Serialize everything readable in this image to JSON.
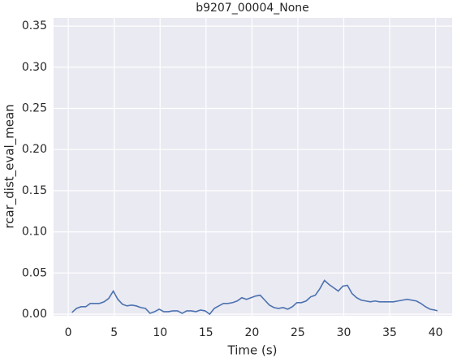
{
  "chart_data": {
    "type": "line",
    "title": "b9207_00004_None",
    "xlabel": "Time (s)",
    "ylabel": "rcar_dist_eval_mean",
    "x": [
      0.4,
      0.9,
      1.4,
      1.9,
      2.4,
      2.9,
      3.4,
      3.9,
      4.4,
      4.9,
      5.4,
      5.9,
      6.4,
      6.9,
      7.4,
      7.9,
      8.4,
      8.9,
      9.4,
      9.9,
      10.4,
      10.9,
      11.4,
      11.9,
      12.4,
      12.9,
      13.4,
      13.9,
      14.4,
      14.9,
      15.4,
      15.9,
      16.4,
      16.9,
      17.4,
      17.9,
      18.4,
      18.9,
      19.4,
      19.9,
      20.4,
      20.9,
      21.4,
      21.9,
      22.4,
      22.9,
      23.4,
      23.9,
      24.4,
      24.9,
      25.4,
      25.9,
      26.4,
      26.9,
      27.4,
      27.9,
      28.4,
      28.9,
      29.4,
      29.9,
      30.4,
      30.9,
      31.4,
      31.9,
      32.4,
      32.9,
      33.4,
      33.9,
      34.4,
      34.9,
      35.4,
      35.9,
      36.4,
      36.9,
      37.4,
      37.9,
      38.4,
      38.9,
      39.4,
      39.9,
      40.2
    ],
    "series": [
      {
        "name": "rcar_dist_eval_mean",
        "color": "#4c72b0",
        "values": [
          0.002,
          0.007,
          0.009,
          0.009,
          0.013,
          0.013,
          0.013,
          0.015,
          0.019,
          0.028,
          0.018,
          0.012,
          0.01,
          0.011,
          0.01,
          0.008,
          0.007,
          0.001,
          0.003,
          0.006,
          0.003,
          0.003,
          0.004,
          0.004,
          0.001,
          0.004,
          0.004,
          0.003,
          0.005,
          0.004,
          0.0,
          0.007,
          0.01,
          0.013,
          0.013,
          0.014,
          0.016,
          0.02,
          0.018,
          0.02,
          0.022,
          0.023,
          0.017,
          0.011,
          0.008,
          0.007,
          0.008,
          0.006,
          0.009,
          0.014,
          0.014,
          0.016,
          0.021,
          0.023,
          0.031,
          0.041,
          0.036,
          0.032,
          0.028,
          0.034,
          0.035,
          0.025,
          0.02,
          0.017,
          0.016,
          0.015,
          0.016,
          0.015,
          0.015,
          0.015,
          0.015,
          0.016,
          0.017,
          0.018,
          0.017,
          0.016,
          0.013,
          0.009,
          0.006,
          0.005,
          0.004
        ]
      }
    ],
    "xlim": [
      -1.6,
      41.8
    ],
    "ylim": [
      -0.002,
      0.36
    ],
    "xticks": [
      0,
      5,
      10,
      15,
      20,
      25,
      30,
      35,
      40
    ],
    "yticks": [
      {
        "value": 0,
        "label": "0.00"
      },
      {
        "value": 0.05,
        "label": "0.05"
      },
      {
        "value": 0.1,
        "label": "0.10"
      },
      {
        "value": 0.15,
        "label": "0.15"
      },
      {
        "value": 0.2,
        "label": "0.20"
      },
      {
        "value": 0.25,
        "label": "0.25"
      },
      {
        "value": 0.3,
        "label": "0.30"
      },
      {
        "value": 0.35,
        "label": "0.35"
      }
    ],
    "grid": true
  }
}
